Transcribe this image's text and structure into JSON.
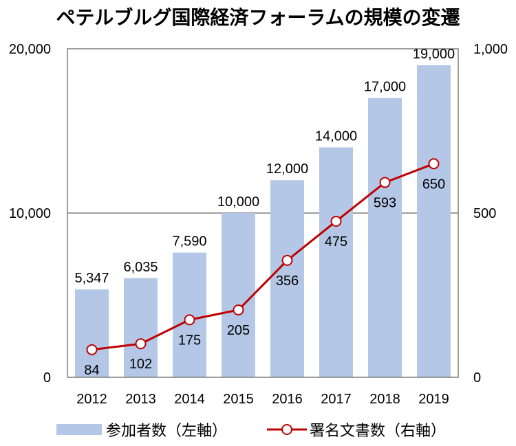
{
  "chart_data": {
    "type": "bar",
    "title": "ペテルブルグ国際経済フォーラムの規模の変遷",
    "categories": [
      "2012",
      "2013",
      "2014",
      "2015",
      "2016",
      "2017",
      "2018",
      "2019"
    ],
    "y_left": {
      "ylim": [
        0,
        20000
      ],
      "ticks": [
        "0",
        "10,000",
        "20,000"
      ],
      "tick_values": [
        0,
        10000,
        20000
      ]
    },
    "y_right": {
      "ylim": [
        0,
        1000
      ],
      "ticks": [
        "0",
        "500",
        "1,000"
      ],
      "tick_values": [
        0,
        500,
        1000
      ]
    },
    "grid": "major horizontal gridline at 10,000",
    "legend": "bottom",
    "series": [
      {
        "name": "参加者数（左軸）",
        "type": "bar",
        "axis": "left",
        "color": "#b4c7e7",
        "values": [
          5347,
          6035,
          7590,
          10000,
          12000,
          14000,
          17000,
          19000
        ],
        "labels": [
          "5,347",
          "6,035",
          "7,590",
          "10,000",
          "12,000",
          "14,000",
          "17,000",
          "19,000"
        ]
      },
      {
        "name": "署名文書数（右軸）",
        "type": "line",
        "axis": "right",
        "color": "#c00000",
        "marker": "open-circle",
        "values": [
          84,
          102,
          175,
          205,
          356,
          475,
          593,
          650
        ],
        "labels": [
          "84",
          "102",
          "175",
          "205",
          "356",
          "475",
          "593",
          "650"
        ]
      }
    ]
  }
}
